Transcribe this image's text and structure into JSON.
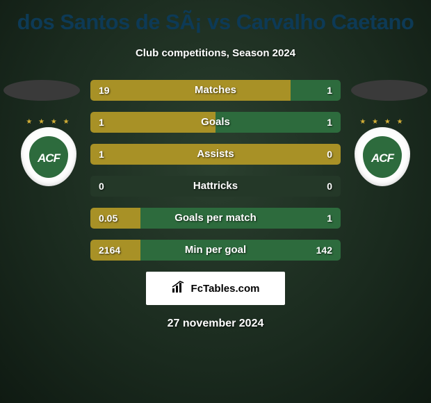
{
  "title": "dos Santos de SÃ¡ vs Carvalho Caetano",
  "subtitle": "Club competitions, Season 2024",
  "date": "27 november 2024",
  "attribution": "FcTables.com",
  "players": {
    "left": {
      "crest_letters": "ACF",
      "stars": "★ ★ ★ ★"
    },
    "right": {
      "crest_letters": "ACF",
      "stars": "★ ★ ★ ★"
    }
  },
  "colors": {
    "left_bar": "#a89126",
    "right_bar": "#2d6b3d",
    "row_bg": "#243828",
    "title_color": "#0d3a56",
    "text_color": "#ffffff"
  },
  "stats": [
    {
      "label": "Matches",
      "left_val": "19",
      "right_val": "1",
      "left_pct": 80,
      "right_pct": 20
    },
    {
      "label": "Goals",
      "left_val": "1",
      "right_val": "1",
      "left_pct": 50,
      "right_pct": 50
    },
    {
      "label": "Assists",
      "left_val": "1",
      "right_val": "0",
      "left_pct": 100,
      "right_pct": 0
    },
    {
      "label": "Hattricks",
      "left_val": "0",
      "right_val": "0",
      "left_pct": 0,
      "right_pct": 0
    },
    {
      "label": "Goals per match",
      "left_val": "0.05",
      "right_val": "1",
      "left_pct": 20,
      "right_pct": 80
    },
    {
      "label": "Min per goal",
      "left_val": "2164",
      "right_val": "142",
      "left_pct": 20,
      "right_pct": 80
    }
  ]
}
